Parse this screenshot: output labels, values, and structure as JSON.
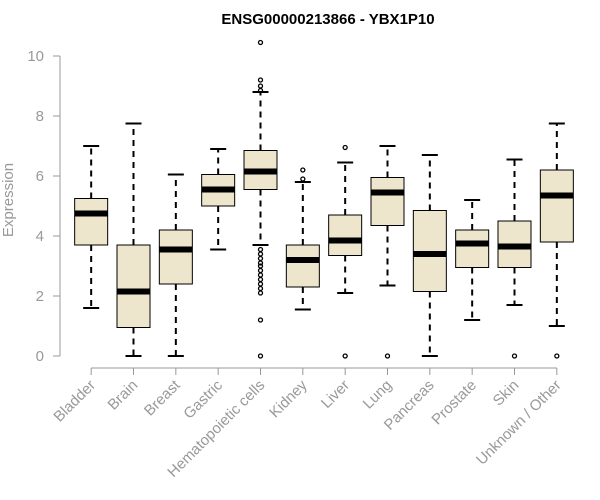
{
  "chart_data": {
    "type": "boxplot",
    "title": "ENSG00000213866 - YBX1P10",
    "xlabel": "",
    "ylabel": "Expression",
    "ylim": [
      0,
      10
    ],
    "yticks": [
      0,
      2,
      4,
      6,
      8,
      10
    ],
    "categories": [
      "Bladder",
      "Brain",
      "Breast",
      "Gastric",
      "Hematopoietic cells",
      "Kidney",
      "Liver",
      "Lung",
      "Pancreas",
      "Prostate",
      "Skin",
      "Unknown / Other"
    ],
    "boxes": [
      {
        "name": "Bladder",
        "whisker_low": 1.6,
        "q1": 3.7,
        "median": 4.75,
        "q3": 5.25,
        "whisker_high": 7.0,
        "outliers": []
      },
      {
        "name": "Brain",
        "whisker_low": 0.0,
        "q1": 0.95,
        "median": 2.15,
        "q3": 3.7,
        "whisker_high": 7.75,
        "outliers": []
      },
      {
        "name": "Breast",
        "whisker_low": 0.0,
        "q1": 2.4,
        "median": 3.55,
        "q3": 4.2,
        "whisker_high": 6.05,
        "outliers": []
      },
      {
        "name": "Gastric",
        "whisker_low": 3.55,
        "q1": 5.0,
        "median": 5.55,
        "q3": 6.05,
        "whisker_high": 6.9,
        "outliers": []
      },
      {
        "name": "Hematopoietic cells",
        "whisker_low": 3.7,
        "q1": 5.55,
        "median": 6.15,
        "q3": 6.85,
        "whisker_high": 8.8,
        "outliers": [
          0.0,
          1.2,
          2.1,
          2.25,
          2.4,
          2.55,
          2.7,
          2.85,
          3.0,
          3.1,
          3.25,
          3.4,
          3.55,
          8.85,
          9.0,
          9.2,
          10.45
        ]
      },
      {
        "name": "Kidney",
        "whisker_low": 1.55,
        "q1": 2.3,
        "median": 3.2,
        "q3": 3.7,
        "whisker_high": 5.8,
        "outliers": [
          5.9,
          6.2
        ]
      },
      {
        "name": "Liver",
        "whisker_low": 2.1,
        "q1": 3.35,
        "median": 3.85,
        "q3": 4.7,
        "whisker_high": 6.45,
        "outliers": [
          0.0,
          6.95
        ]
      },
      {
        "name": "Lung",
        "whisker_low": 2.35,
        "q1": 4.35,
        "median": 5.45,
        "q3": 5.95,
        "whisker_high": 7.0,
        "outliers": [
          0.0
        ]
      },
      {
        "name": "Pancreas",
        "whisker_low": 0.0,
        "q1": 2.15,
        "median": 3.4,
        "q3": 4.85,
        "whisker_high": 6.7,
        "outliers": []
      },
      {
        "name": "Prostate",
        "whisker_low": 1.2,
        "q1": 2.95,
        "median": 3.75,
        "q3": 4.2,
        "whisker_high": 5.2,
        "outliers": []
      },
      {
        "name": "Skin",
        "whisker_low": 1.7,
        "q1": 2.95,
        "median": 3.65,
        "q3": 4.5,
        "whisker_high": 6.55,
        "outliers": [
          0.0
        ]
      },
      {
        "name": "Unknown / Other",
        "whisker_low": 1.0,
        "q1": 3.8,
        "median": 5.35,
        "q3": 6.2,
        "whisker_high": 7.75,
        "outliers": [
          0.0
        ]
      }
    ],
    "colors": {
      "box_fill": "#ede6cc",
      "box_stroke": "#000000",
      "axis": "#999999",
      "title": "#000000"
    }
  }
}
